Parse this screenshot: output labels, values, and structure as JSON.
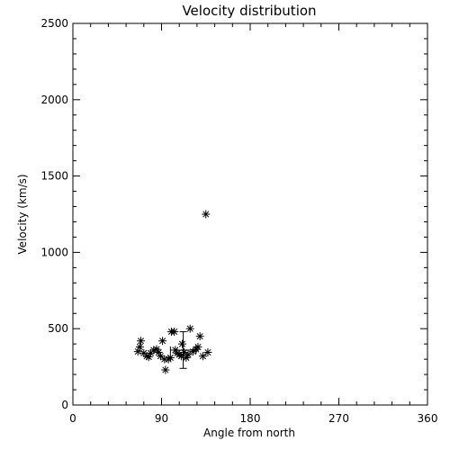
{
  "chart_data": {
    "type": "scatter",
    "title": "Velocity distribution",
    "xlabel": "Angle from north",
    "ylabel": "Velocity (km/s)",
    "xlim": [
      0,
      360
    ],
    "ylim": [
      0,
      2500
    ],
    "xticks": [
      0,
      90,
      180,
      270,
      360
    ],
    "yticks": [
      0,
      500,
      1000,
      1500,
      2000,
      2500
    ],
    "xtick_labels": [
      "0",
      "90",
      "180",
      "270",
      "360"
    ],
    "ytick_labels": [
      "0",
      "500",
      "1000",
      "1500",
      "2000",
      "2500"
    ],
    "marker": "asterisk",
    "grid": false,
    "points": [
      {
        "x": 66,
        "y": 350
      },
      {
        "x": 68,
        "y": 380
      },
      {
        "x": 69,
        "y": 420
      },
      {
        "x": 72,
        "y": 340
      },
      {
        "x": 75,
        "y": 320
      },
      {
        "x": 77,
        "y": 315
      },
      {
        "x": 79,
        "y": 340
      },
      {
        "x": 82,
        "y": 360
      },
      {
        "x": 85,
        "y": 365
      },
      {
        "x": 87,
        "y": 345
      },
      {
        "x": 89,
        "y": 320
      },
      {
        "x": 91,
        "y": 420
      },
      {
        "x": 93,
        "y": 300
      },
      {
        "x": 94,
        "y": 230
      },
      {
        "x": 97,
        "y": 300
      },
      {
        "x": 99,
        "y": 310
      },
      {
        "x": 100,
        "y": 480
      },
      {
        "x": 103,
        "y": 480
      },
      {
        "x": 104,
        "y": 360
      },
      {
        "x": 106,
        "y": 340
      },
      {
        "x": 108,
        "y": 330
      },
      {
        "x": 110,
        "y": 320
      },
      {
        "x": 111,
        "y": 400
      },
      {
        "x": 113,
        "y": 345
      },
      {
        "x": 115,
        "y": 310
      },
      {
        "x": 117,
        "y": 330
      },
      {
        "x": 119,
        "y": 500
      },
      {
        "x": 122,
        "y": 350
      },
      {
        "x": 125,
        "y": 365
      },
      {
        "x": 127,
        "y": 380
      },
      {
        "x": 129,
        "y": 450
      },
      {
        "x": 132,
        "y": 320
      },
      {
        "x": 135,
        "y": 1250
      },
      {
        "x": 137,
        "y": 345
      }
    ],
    "error_bar": {
      "x": 112,
      "y": 360,
      "xerr": 13,
      "yerr": 120
    }
  }
}
